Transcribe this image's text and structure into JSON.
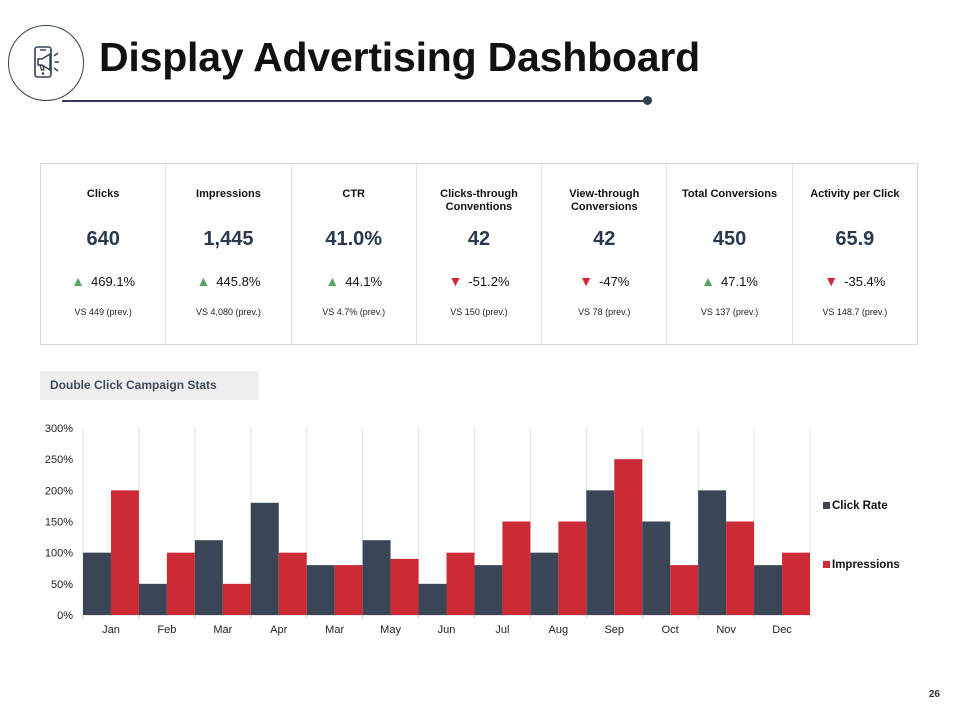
{
  "header": {
    "title": "Display Advertising Dashboard"
  },
  "kpis": [
    {
      "label": "Clicks",
      "value": "640",
      "direction": "up",
      "change": "469.1%",
      "prev": "VS 449 (prev.)"
    },
    {
      "label": "Impressions",
      "value": "1,445",
      "direction": "up",
      "change": "445.8%",
      "prev": "VS 4,080 (prev.)"
    },
    {
      "label": "CTR",
      "value": "41.0%",
      "direction": "up",
      "change": "44.1%",
      "prev": "VS 4.7% (prev.)"
    },
    {
      "label": "Clicks-through\nConventions",
      "value": "42",
      "direction": "down",
      "change": "-51.2%",
      "prev": "VS 150 (prev.)"
    },
    {
      "label": "View-through\nConversions",
      "value": "42",
      "direction": "down",
      "change": "-47%",
      "prev": "VS 78 (prev.)"
    },
    {
      "label": "Total Conversions",
      "value": "450",
      "direction": "up",
      "change": "47.1%",
      "prev": "VS 137 (prev.)"
    },
    {
      "label": "Activity per Click",
      "value": "65.9",
      "direction": "down",
      "change": "-35.4%",
      "prev": "VS 148.7 (prev.)"
    }
  ],
  "section": {
    "label": "Double Click Campaign Stats"
  },
  "chart_data": {
    "type": "bar",
    "title": "",
    "xlabel": "",
    "ylabel": "",
    "categories": [
      "Jan",
      "Feb",
      "Mar",
      "Apr",
      "Mar",
      "May",
      "Jun",
      "Jul",
      "Aug",
      "Sep",
      "Oct",
      "Nov",
      "Dec"
    ],
    "series": [
      {
        "name": "Click Rate",
        "color": "#3a4556",
        "values": [
          100,
          50,
          120,
          180,
          80,
          120,
          50,
          80,
          100,
          200,
          150,
          200,
          80
        ]
      },
      {
        "name": "Impressions",
        "color": "#cc2a34",
        "values": [
          200,
          100,
          50,
          100,
          80,
          90,
          100,
          150,
          150,
          250,
          80,
          150,
          100
        ]
      }
    ],
    "ylim": [
      0,
      300
    ],
    "yticks": [
      "0%",
      "50%",
      "100%",
      "150%",
      "200%",
      "250%",
      "300%"
    ],
    "grid": "vertical",
    "legend": "right"
  },
  "footer": {
    "page_number": "26"
  }
}
